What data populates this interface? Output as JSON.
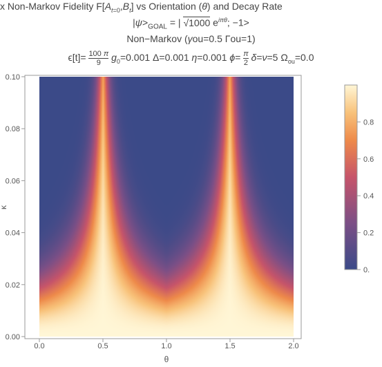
{
  "title": {
    "line1": "x Non-Markov Fidelity F[A_{t=0},B_t] vs Orientation (θ) and Decay Rate",
    "line2": "|ψ>_GOAL = | √1000 e^{iπθ}; −1>",
    "line3": "Non-Markov (γou=0.5 Γou=1)",
    "line4": "ϵ[t]= 100π/9  g₀=0.001 Δ=0.001 η=0.001 ϕ= π/2  δ=ν=5 Ωou=0.0"
  },
  "colors": {
    "low": "#3b4a88",
    "mid": "#d86e4c",
    "high": "#fff6d6"
  },
  "chart_data": {
    "type": "heatmap",
    "xlabel": "θ",
    "ylabel": "κ",
    "xlim": [
      0,
      2
    ],
    "ylim": [
      0,
      0.1
    ],
    "x_ticks": [
      "0.0",
      "0.5",
      "1.0",
      "1.5",
      "2.0"
    ],
    "x_tick_values": [
      0,
      0.5,
      1,
      1.5,
      2
    ],
    "y_ticks": [
      "0.00",
      "0.02",
      "0.04",
      "0.06",
      "0.08",
      "0.10"
    ],
    "y_tick_values": [
      0,
      0.02,
      0.04,
      0.06,
      0.08,
      0.1
    ],
    "peak_theta": [
      0.5,
      1.5
    ],
    "colorbar": {
      "range": [
        0,
        1
      ],
      "ticks": [
        "0.",
        "0.2",
        "0.4",
        "0.6",
        "0.8"
      ],
      "tick_values": [
        0,
        0.2,
        0.4,
        0.6,
        0.8
      ]
    }
  }
}
